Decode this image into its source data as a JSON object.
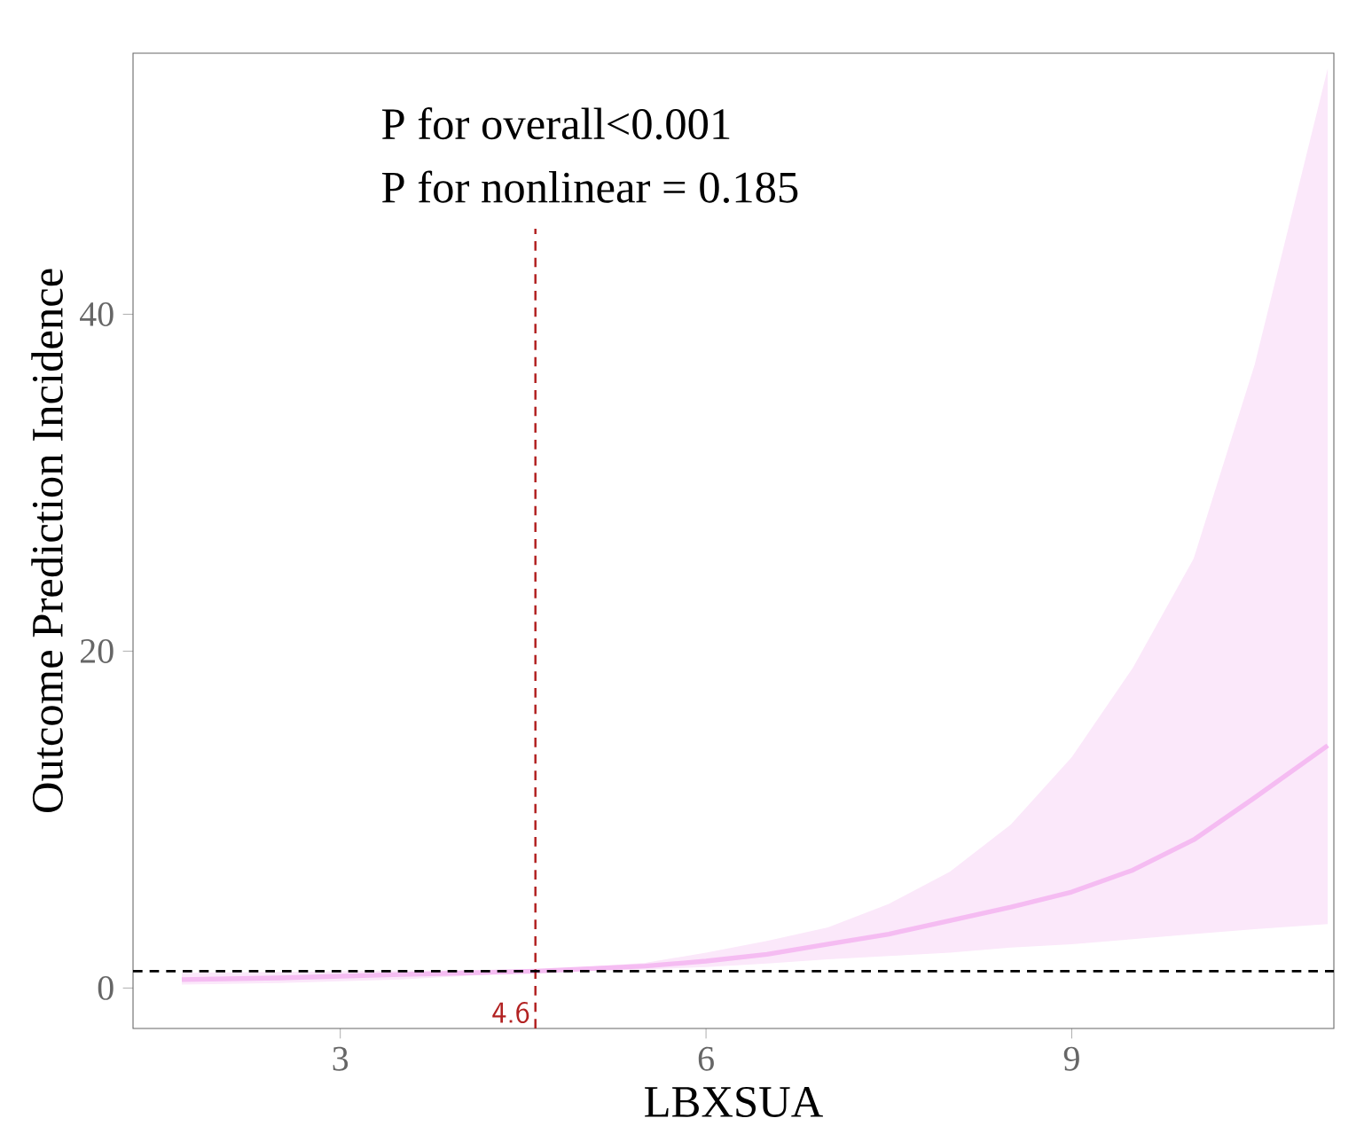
{
  "chart_data": {
    "type": "line",
    "xlabel": "LBXSUA",
    "ylabel": "Outcome Prediction Incidence",
    "annotations": [
      "P for overall<0.001",
      "P for nonlinear = 0.185"
    ],
    "x": [
      1.7,
      2.5,
      3.5,
      4.6,
      5.5,
      6,
      6.5,
      7,
      7.5,
      8,
      8.5,
      9,
      9.5,
      10,
      10.5,
      11.1
    ],
    "series": [
      {
        "color": "#f5bcf2",
        "values": [
          0.5,
          0.6,
          0.8,
          1.0,
          1.3,
          1.6,
          2.0,
          2.6,
          3.2,
          4.0,
          4.8,
          5.7,
          7.0,
          8.8,
          11.3,
          14.4
        ],
        "lower": [
          0.2,
          0.3,
          0.5,
          0.95,
          1.1,
          1.25,
          1.45,
          1.7,
          1.9,
          2.1,
          2.4,
          2.6,
          2.9,
          3.2,
          3.5,
          3.8
        ],
        "upper": [
          0.9,
          0.95,
          1.05,
          1.05,
          1.5,
          2.1,
          2.8,
          3.6,
          5.0,
          6.9,
          9.7,
          13.7,
          19.0,
          25.5,
          37,
          54.6
        ]
      }
    ],
    "ref_lines": [
      {
        "axis": "x",
        "value": 4.6,
        "label": "4.6",
        "color": "#b22222",
        "line_style": "dashed"
      },
      {
        "axis": "y",
        "value": 1,
        "color": "#000000",
        "line_style": "dashed"
      }
    ],
    "xlim": [
      1.3,
      11.15
    ],
    "ylim": [
      -2.4,
      55.5
    ],
    "xticks": [
      3,
      6,
      9
    ],
    "yticks": [
      0,
      20,
      40
    ],
    "grid": false
  }
}
